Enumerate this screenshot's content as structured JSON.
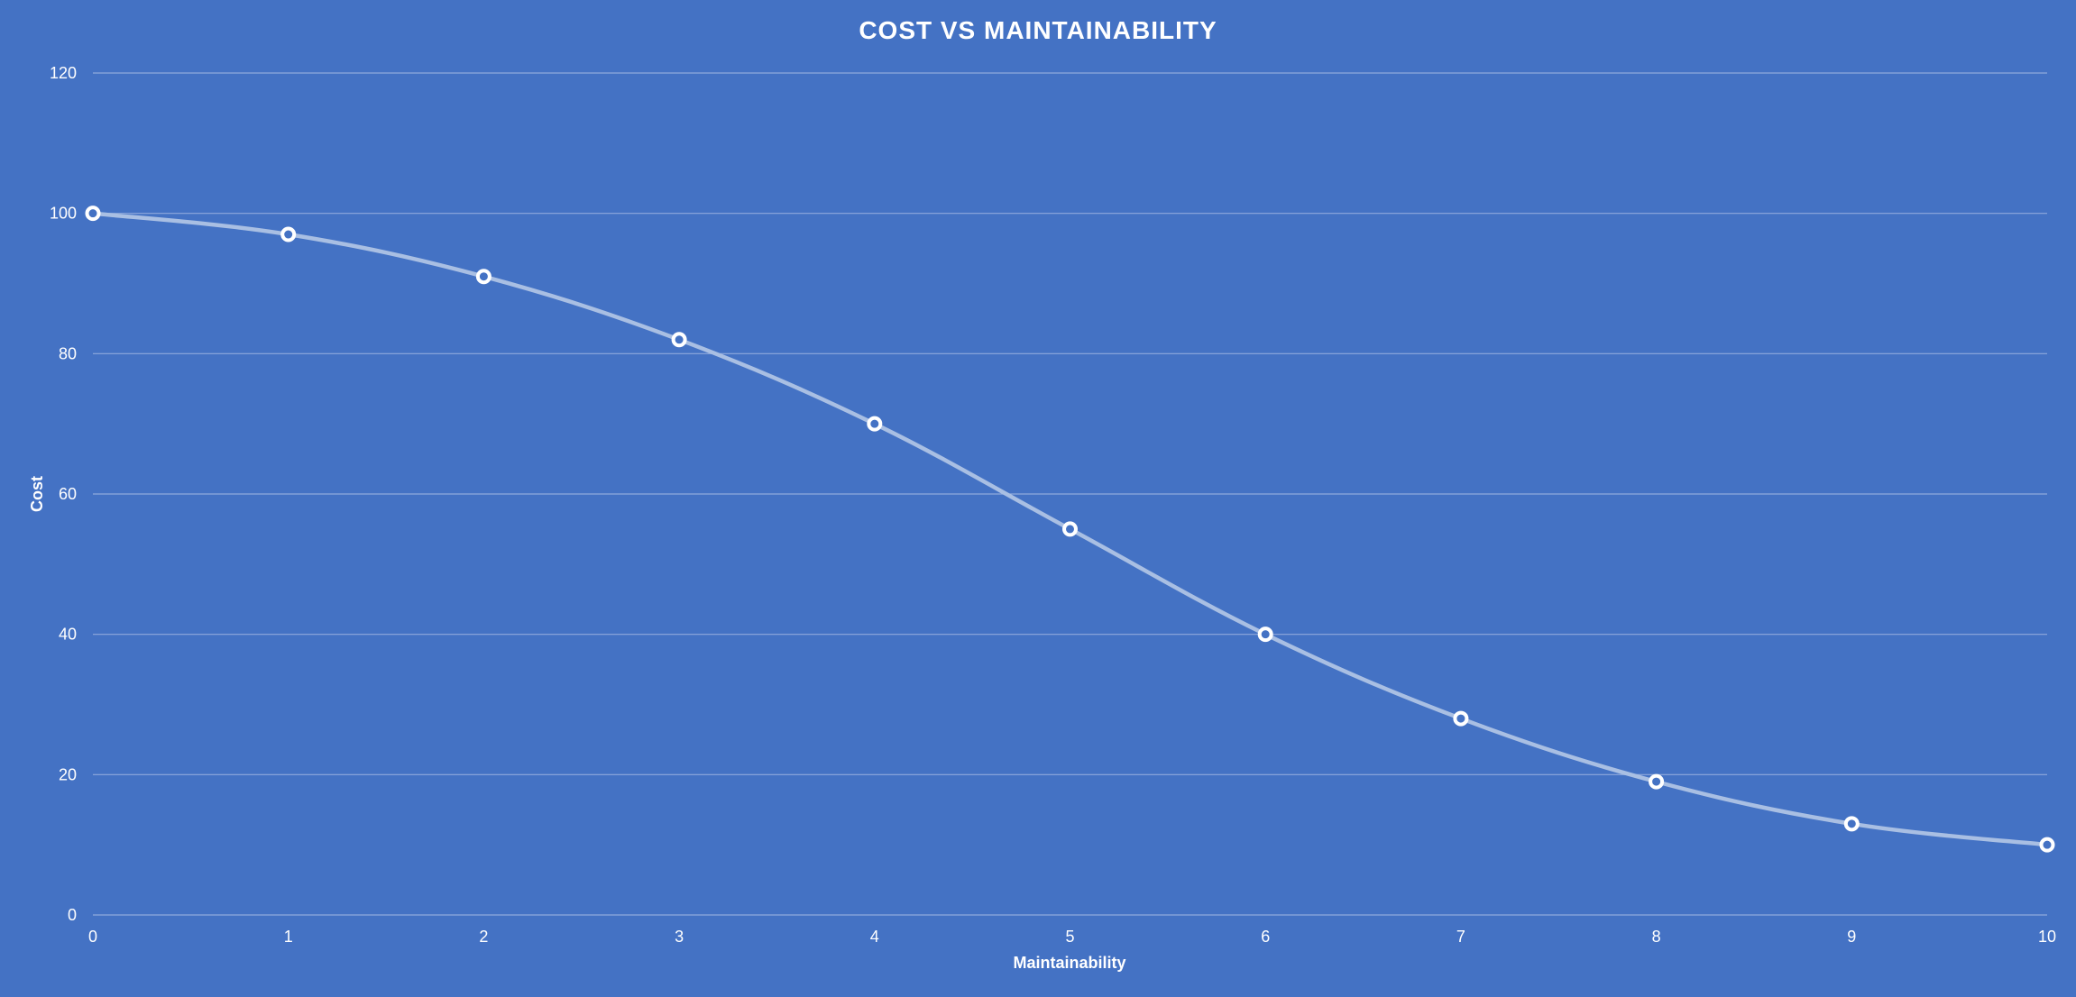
{
  "chart_data": {
    "type": "line",
    "title": "COST VS MAINTAINABILITY",
    "xlabel": "Maintainability",
    "ylabel": "Cost",
    "xlim": [
      0,
      10
    ],
    "ylim": [
      0,
      120
    ],
    "xticks": [
      "0",
      "1",
      "2",
      "3",
      "4",
      "5",
      "6",
      "7",
      "8",
      "9",
      "10"
    ],
    "yticks": [
      "0",
      "20",
      "40",
      "60",
      "80",
      "100",
      "120"
    ],
    "grid": "horizontal",
    "legend": "none",
    "x": [
      0,
      1,
      2,
      3,
      4,
      5,
      6,
      7,
      8,
      9,
      10
    ],
    "series": [
      {
        "values": [
          100,
          97,
          91,
          82,
          70,
          55,
          40,
          28,
          19,
          13,
          10
        ],
        "line_color": "#A9BFE3",
        "marker_color": "#ffffff",
        "marker": "hollow-circle",
        "smooth": true
      }
    ],
    "colors": {
      "background": "#4472C4",
      "gridline": "#8FAADC",
      "text": "#ffffff"
    }
  }
}
